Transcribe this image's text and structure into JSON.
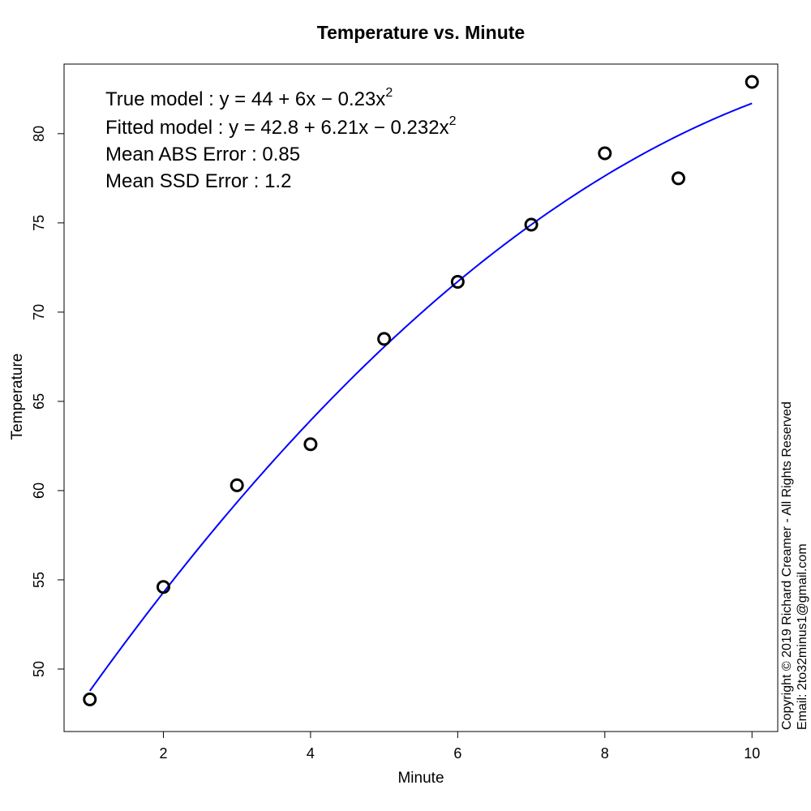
{
  "chart_data": {
    "type": "scatter",
    "title": "Temperature vs. Minute",
    "xlabel": "Minute",
    "ylabel": "Temperature",
    "xlim": [
      0.65,
      10.35
    ],
    "ylim": [
      46.5,
      83.9
    ],
    "xticks": [
      2,
      4,
      6,
      8,
      10
    ],
    "yticks": [
      50,
      55,
      60,
      65,
      70,
      75,
      80
    ],
    "grid": false,
    "series": [
      {
        "kind": "points",
        "marker": "open-circle",
        "color": "#000000",
        "x": [
          1,
          2,
          3,
          4,
          5,
          6,
          7,
          8,
          9,
          10
        ],
        "y": [
          48.3,
          54.6,
          60.3,
          62.6,
          68.5,
          71.7,
          74.9,
          78.9,
          77.5,
          82.9
        ]
      },
      {
        "kind": "curve",
        "color": "#0000ff",
        "x_range": [
          1,
          10
        ],
        "coefficients": [
          42.8,
          6.21,
          -0.232
        ]
      }
    ],
    "annotations": [
      {
        "label": "True model",
        "value": "y = 44 + 6x − 0.23x",
        "sup": "2"
      },
      {
        "label": "Fitted model",
        "value": "y = 42.8 + 6.21x − 0.232x",
        "sup": "2"
      },
      {
        "label": "Mean ABS Error",
        "value": "0.85",
        "sup": ""
      },
      {
        "label": "Mean SSD Error",
        "value": "1.2",
        "sup": ""
      }
    ]
  },
  "copyright": {
    "line1": "Copyright © 2019 Richard Creamer - All Rights Reserved",
    "line2": "Email: 2to32minus1@gmail.com"
  }
}
